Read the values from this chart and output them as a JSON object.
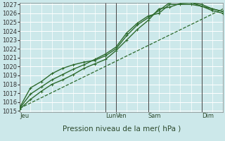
{
  "bg_color": "#cce8ea",
  "grid_color": "#ffffff",
  "line_color": "#2d6a2d",
  "title": "Pression niveau de la mer( hPa )",
  "ylim": [
    1015,
    1027
  ],
  "yticks": [
    1015,
    1016,
    1017,
    1018,
    1019,
    1020,
    1021,
    1022,
    1023,
    1024,
    1025,
    1026,
    1027
  ],
  "x_day_labels": [
    {
      "label": "Jeu",
      "x": 0.0
    },
    {
      "label": "Lun",
      "x": 4.0
    },
    {
      "label": "Ven",
      "x": 4.5
    },
    {
      "label": "Sam",
      "x": 6.0
    },
    {
      "label": "Dim",
      "x": 8.5
    }
  ],
  "xmin": 0.0,
  "xmax": 9.5,
  "vlines": [
    0.0,
    4.0,
    4.5,
    6.0,
    8.5
  ],
  "vline_color": "#444444",
  "series": [
    {
      "x": [
        0,
        0.5,
        1.0,
        1.5,
        2.0,
        2.5,
        3.0,
        3.5,
        4.0,
        4.5,
        5.0,
        5.5,
        6.0,
        6.5,
        7.0,
        7.5,
        8.0,
        8.5,
        9.0,
        9.5
      ],
      "y": [
        1015.2,
        1016.3,
        1017.2,
        1018.0,
        1018.5,
        1019.1,
        1019.8,
        1020.3,
        1020.8,
        1021.8,
        1023.0,
        1024.2,
        1025.2,
        1026.5,
        1026.7,
        1027.1,
        1027.2,
        1027.0,
        1026.5,
        1026.2
      ],
      "style": "-",
      "marker": "+",
      "lw": 1.0
    },
    {
      "x": [
        0,
        0.5,
        1.0,
        1.5,
        2.0,
        2.5,
        3.0,
        3.5,
        4.0,
        4.5,
        5.0,
        5.5,
        6.0,
        6.5,
        7.0,
        7.5,
        8.0,
        8.5,
        9.0,
        9.5
      ],
      "y": [
        1015.4,
        1017.6,
        1018.3,
        1019.2,
        1019.8,
        1020.2,
        1020.5,
        1020.7,
        1021.2,
        1022.0,
        1023.5,
        1024.7,
        1025.5,
        1026.3,
        1027.2,
        1027.4,
        1027.2,
        1026.8,
        1026.3,
        1026.0
      ],
      "style": "-",
      "marker": "+",
      "lw": 1.0
    },
    {
      "x": [
        0,
        0.5,
        1.0,
        1.5,
        2.0,
        2.5,
        3.0,
        3.5,
        4.0,
        4.5,
        5.0,
        5.5,
        6.0,
        6.5,
        7.0,
        7.5,
        8.0,
        8.5,
        9.0,
        9.5
      ],
      "y": [
        1015.3,
        1016.9,
        1017.7,
        1018.5,
        1019.1,
        1019.7,
        1020.2,
        1020.8,
        1021.4,
        1022.2,
        1023.8,
        1024.9,
        1025.7,
        1026.0,
        1027.0,
        1027.0,
        1027.0,
        1026.8,
        1026.5,
        1026.2
      ],
      "style": "-",
      "marker": "+",
      "lw": 1.0
    },
    {
      "x": [
        0,
        9.5
      ],
      "y": [
        1015.3,
        1026.5
      ],
      "style": "--",
      "marker": null,
      "lw": 0.9
    }
  ],
  "tick_fontsize": 6,
  "label_fontsize": 7.5,
  "ylabel_color": "#2d4a2d",
  "tick_color": "#333333"
}
